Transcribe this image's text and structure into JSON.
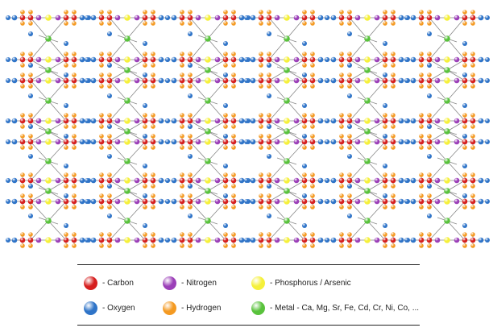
{
  "colors": {
    "carbon": "#d61f1f",
    "nitrogen": "#9b3fb8",
    "phosphorus": "#f5f03a",
    "oxygen": "#2f74c8",
    "hydrogen": "#f49a22",
    "metal": "#59c23c",
    "bond": "#888888"
  },
  "legend": {
    "carbon": "- Carbon",
    "nitrogen": "- Nitrogen",
    "phosphorus": "- Phosphorus / Arsenic",
    "oxygen": "- Oxygen",
    "hydrogen": "- Hydrogen",
    "metal": "- Metal - Ca, Mg, Sr, Fe, Cd, Cr, Ni, Co, ..."
  }
}
